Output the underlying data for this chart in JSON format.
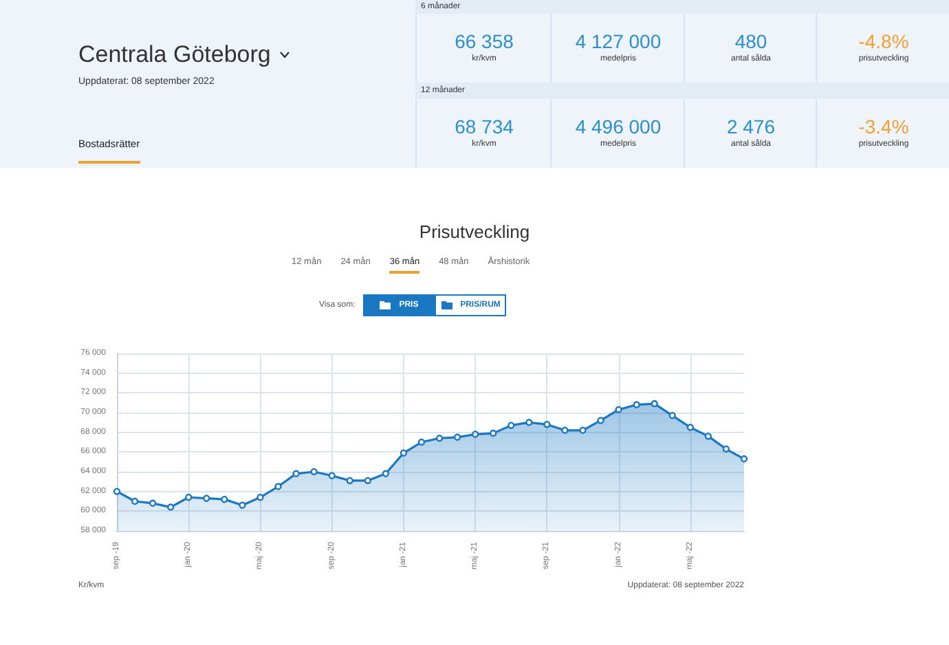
{
  "chart_data": [
    {
      "type": "other",
      "title": "Centrala Göteborg",
      "subtitle": "Uppdaterat: 08 september 2022",
      "annotations": [
        "Bostadsrätter",
        "6 månader",
        "66 358",
        "kr/kvm",
        "4 127 000",
        "medelpris",
        "480",
        "antal sålda",
        "-4.8%",
        "prisutveckling",
        "12 månader",
        "68 734",
        "kr/kvm",
        "4 496 000",
        "medelpris",
        "2 476",
        "antal sålda",
        "-3.4%",
        "prisutveckling"
      ]
    },
    {
      "type": "area",
      "title": "Prisutveckling",
      "annotations": [
        "12 mån",
        "24 mån",
        "36 mån",
        "48 mån",
        "Årshistorik",
        "Visa som:",
        "PRIS",
        "PRIS/RUM",
        "Uppdaterat: 08 september 2022",
        "Kr/kvm"
      ],
      "categories": [
        "sep -19",
        null,
        null,
        null,
        "jan -20",
        null,
        null,
        null,
        "maj -20",
        null,
        null,
        null,
        "sep -20",
        null,
        null,
        null,
        "jan -21",
        null,
        null,
        null,
        "maj -21",
        null,
        null,
        null,
        "sep -21",
        null,
        null,
        null,
        "jan -22",
        null,
        null,
        null,
        "maj -22",
        null,
        null,
        null
      ],
      "series": [
        {
          "color": "#1a78c2",
          "values": [
            62000,
            61000,
            60800,
            60400,
            61400,
            61300,
            61200,
            60600,
            61400,
            62500,
            63800,
            64000,
            63600,
            63100,
            63100,
            63800,
            65900,
            67000,
            67400,
            67500,
            67800,
            67900,
            68700,
            69000,
            68800,
            68200,
            68200,
            69200,
            70300,
            70800,
            70900,
            69700,
            68500,
            67600,
            66300,
            65300
          ]
        }
      ],
      "ylim": [
        58000,
        76000
      ],
      "yticks": [
        {
          "value": 58000,
          "label": "58 000"
        },
        {
          "value": 60000,
          "label": "60 000"
        },
        {
          "value": 62000,
          "label": "62 000"
        },
        {
          "value": 64000,
          "label": "64 000"
        },
        {
          "value": 66000,
          "label": "66 000"
        },
        {
          "value": 68000,
          "label": "68 000"
        },
        {
          "value": 70000,
          "label": "70 000"
        },
        {
          "value": 72000,
          "label": "72 000"
        },
        {
          "value": 74000,
          "label": "74 000"
        },
        {
          "value": 76000,
          "label": "76 000"
        }
      ],
      "grid": true,
      "marker": "circle",
      "line_style": "solid"
    }
  ]
}
